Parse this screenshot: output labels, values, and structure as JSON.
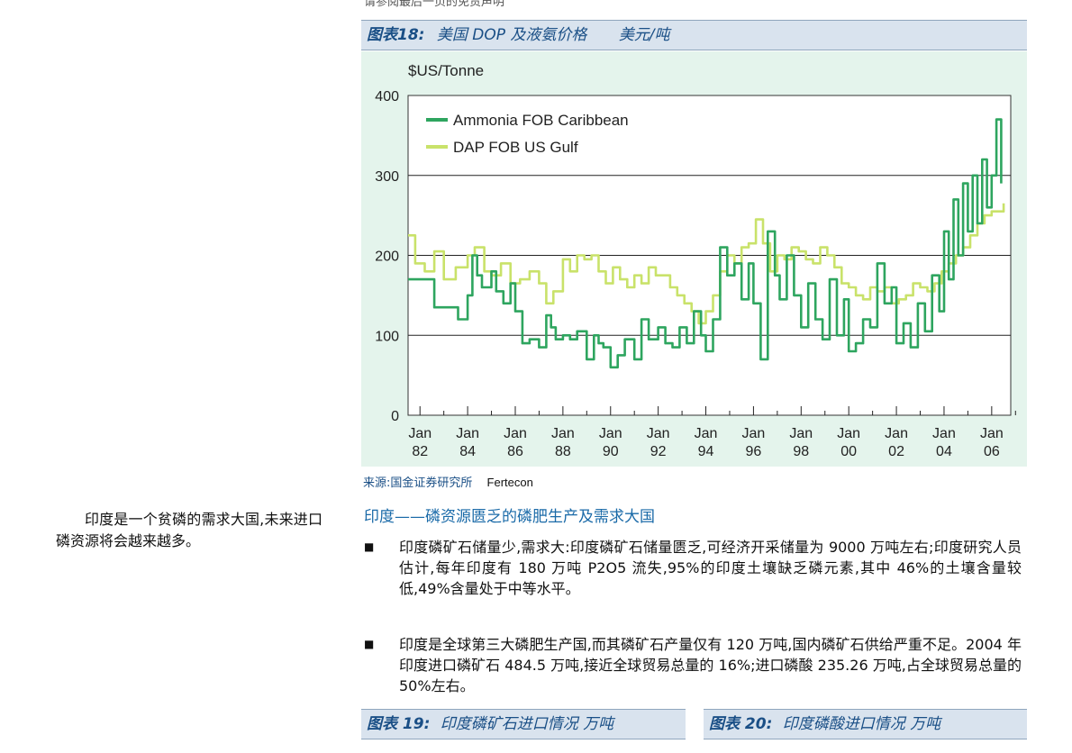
{
  "top_cut_text": "请参阅最后一页的免责声明",
  "figure18": {
    "title_prefix": "图表18:",
    "title_main": "美国 DOP 及液氨价格",
    "title_unit": "美元/吨",
    "source_label": "来源:国金证券研究所",
    "source_org": "Fertecon"
  },
  "chart_data": {
    "type": "line",
    "ylabel": "$US/Tonne",
    "ylim": [
      0,
      400
    ],
    "yticks": [
      0,
      100,
      200,
      300,
      400
    ],
    "ytick_labels": [
      "0",
      "100",
      "200",
      "300",
      "400"
    ],
    "xlim": [
      1981.5,
      2006.8
    ],
    "xticks": [
      1982,
      1984,
      1986,
      1988,
      1990,
      1992,
      1994,
      1996,
      1998,
      2000,
      2002,
      2004,
      2006
    ],
    "xtick_labels": [
      [
        "Jan",
        "82"
      ],
      [
        "Jan",
        "84"
      ],
      [
        "Jan",
        "86"
      ],
      [
        "Jan",
        "88"
      ],
      [
        "Jan",
        "90"
      ],
      [
        "Jan",
        "92"
      ],
      [
        "Jan",
        "94"
      ],
      [
        "Jan",
        "96"
      ],
      [
        "Jan",
        "98"
      ],
      [
        "Jan",
        "00"
      ],
      [
        "Jan",
        "02"
      ],
      [
        "Jan",
        "04"
      ],
      [
        "Jan",
        "06"
      ]
    ],
    "grid": "horizontal",
    "legend_position": "top-left",
    "series": [
      {
        "name": "Ammonia FOB Caribbean",
        "color": "#2ea55f",
        "x": [
          1981.5,
          1982.5,
          1982.6,
          1983.5,
          1983.6,
          1984.0,
          1984.2,
          1984.4,
          1984.6,
          1985.0,
          1985.2,
          1985.5,
          1985.8,
          1986.0,
          1986.3,
          1986.6,
          1987.0,
          1987.3,
          1987.5,
          1987.7,
          1988.0,
          1988.3,
          1988.6,
          1989.0,
          1989.3,
          1989.5,
          1989.7,
          1990.0,
          1990.3,
          1990.6,
          1991.0,
          1991.3,
          1991.6,
          1992.0,
          1992.3,
          1992.6,
          1992.9,
          1993.2,
          1993.5,
          1993.8,
          1994.0,
          1994.3,
          1994.6,
          1994.9,
          1995.2,
          1995.5,
          1995.8,
          1996.0,
          1996.3,
          1996.6,
          1996.9,
          1997.1,
          1997.4,
          1997.7,
          1998.0,
          1998.3,
          1998.6,
          1998.9,
          1999.2,
          1999.5,
          1999.8,
          2000.0,
          2000.3,
          2000.6,
          2000.9,
          2001.2,
          2001.5,
          2001.8,
          2002.0,
          2002.3,
          2002.6,
          2002.9,
          2003.2,
          2003.5,
          2003.8,
          2004.0,
          2004.2,
          2004.4,
          2004.6,
          2004.8,
          2005.0,
          2005.2,
          2005.4,
          2005.6,
          2005.8,
          2006.0,
          2006.2,
          2006.4
        ],
        "y": [
          170,
          170,
          135,
          135,
          120,
          150,
          200,
          175,
          160,
          180,
          155,
          140,
          165,
          130,
          90,
          95,
          85,
          125,
          110,
          95,
          100,
          95,
          105,
          70,
          100,
          90,
          85,
          60,
          75,
          95,
          70,
          120,
          95,
          110,
          90,
          85,
          110,
          90,
          130,
          100,
          80,
          120,
          210,
          175,
          190,
          145,
          190,
          140,
          70,
          230,
          175,
          145,
          200,
          150,
          110,
          165,
          120,
          95,
          170,
          100,
          145,
          80,
          90,
          120,
          110,
          190,
          140,
          160,
          90,
          115,
          85,
          140,
          105,
          175,
          130,
          230,
          170,
          270,
          200,
          290,
          230,
          300,
          240,
          320,
          260,
          300,
          370,
          290
        ]
      },
      {
        "name": "DAP FOB US Gulf",
        "color": "#c9e26a",
        "x": [
          1981.5,
          1981.8,
          1982.2,
          1982.6,
          1983.0,
          1983.5,
          1984.0,
          1984.3,
          1984.7,
          1985.0,
          1985.4,
          1985.8,
          1986.2,
          1986.6,
          1987.0,
          1987.3,
          1987.6,
          1988.0,
          1988.3,
          1988.6,
          1988.9,
          1989.2,
          1989.5,
          1989.8,
          1990.1,
          1990.4,
          1990.7,
          1991.0,
          1991.3,
          1991.6,
          1991.9,
          1992.2,
          1992.5,
          1992.8,
          1993.1,
          1993.4,
          1993.7,
          1994.0,
          1994.3,
          1994.6,
          1994.9,
          1995.2,
          1995.5,
          1995.8,
          1996.1,
          1996.4,
          1996.7,
          1997.0,
          1997.3,
          1997.6,
          1997.9,
          1998.2,
          1998.5,
          1998.8,
          1999.1,
          1999.4,
          1999.7,
          2000.0,
          2000.3,
          2000.6,
          2000.9,
          2001.2,
          2001.5,
          2001.8,
          2002.1,
          2002.4,
          2002.7,
          2003.0,
          2003.3,
          2003.6,
          2003.9,
          2004.2,
          2004.5,
          2004.8,
          2005.1,
          2005.4,
          2005.7,
          2006.0,
          2006.3,
          2006.5
        ],
        "y": [
          225,
          190,
          180,
          205,
          170,
          185,
          200,
          210,
          180,
          175,
          190,
          165,
          170,
          180,
          165,
          140,
          155,
          195,
          180,
          200,
          195,
          200,
          180,
          165,
          185,
          170,
          160,
          175,
          165,
          185,
          175,
          175,
          160,
          150,
          140,
          130,
          115,
          130,
          150,
          180,
          200,
          190,
          210,
          215,
          245,
          215,
          180,
          200,
          195,
          210,
          205,
          195,
          190,
          210,
          200,
          185,
          165,
          160,
          150,
          145,
          160,
          155,
          160,
          140,
          145,
          150,
          165,
          160,
          155,
          165,
          180,
          190,
          200,
          210,
          225,
          240,
          250,
          255,
          255,
          265
        ]
      }
    ]
  },
  "side_note": "印度是一个贫磷的需求大国,未来进口磷资源将会越来越多。",
  "section_title": "印度——磷资源匮乏的磷肥生产及需求大国",
  "bullets": [
    {
      "mark": "■",
      "text": "印度磷矿石储量少,需求大:印度磷矿石储量匮乏,可经济开采储量为 9000 万吨左右;印度研究人员估计,每年印度有 180 万吨 P2O5 流失,95%的印度土壤缺乏磷元素,其中 46%的土壤含量较低,49%含量处于中等水平。"
    },
    {
      "mark": "■",
      "text": "印度是全球第三大磷肥生产国,而其磷矿石产量仅有 120 万吨,国内磷矿石供给严重不足。2004 年印度进口磷矿石 484.5 万吨,接近全球贸易总量的 16%;进口磷酸 235.26 万吨,占全球贸易总量的 50%左右。"
    }
  ],
  "figure19": {
    "title_prefix": "图表 19:",
    "title_main": "印度磷矿石进口情况 万吨"
  },
  "figure20": {
    "title_prefix": "图表 20:",
    "title_main": "印度磷酸进口情况 万吨"
  }
}
